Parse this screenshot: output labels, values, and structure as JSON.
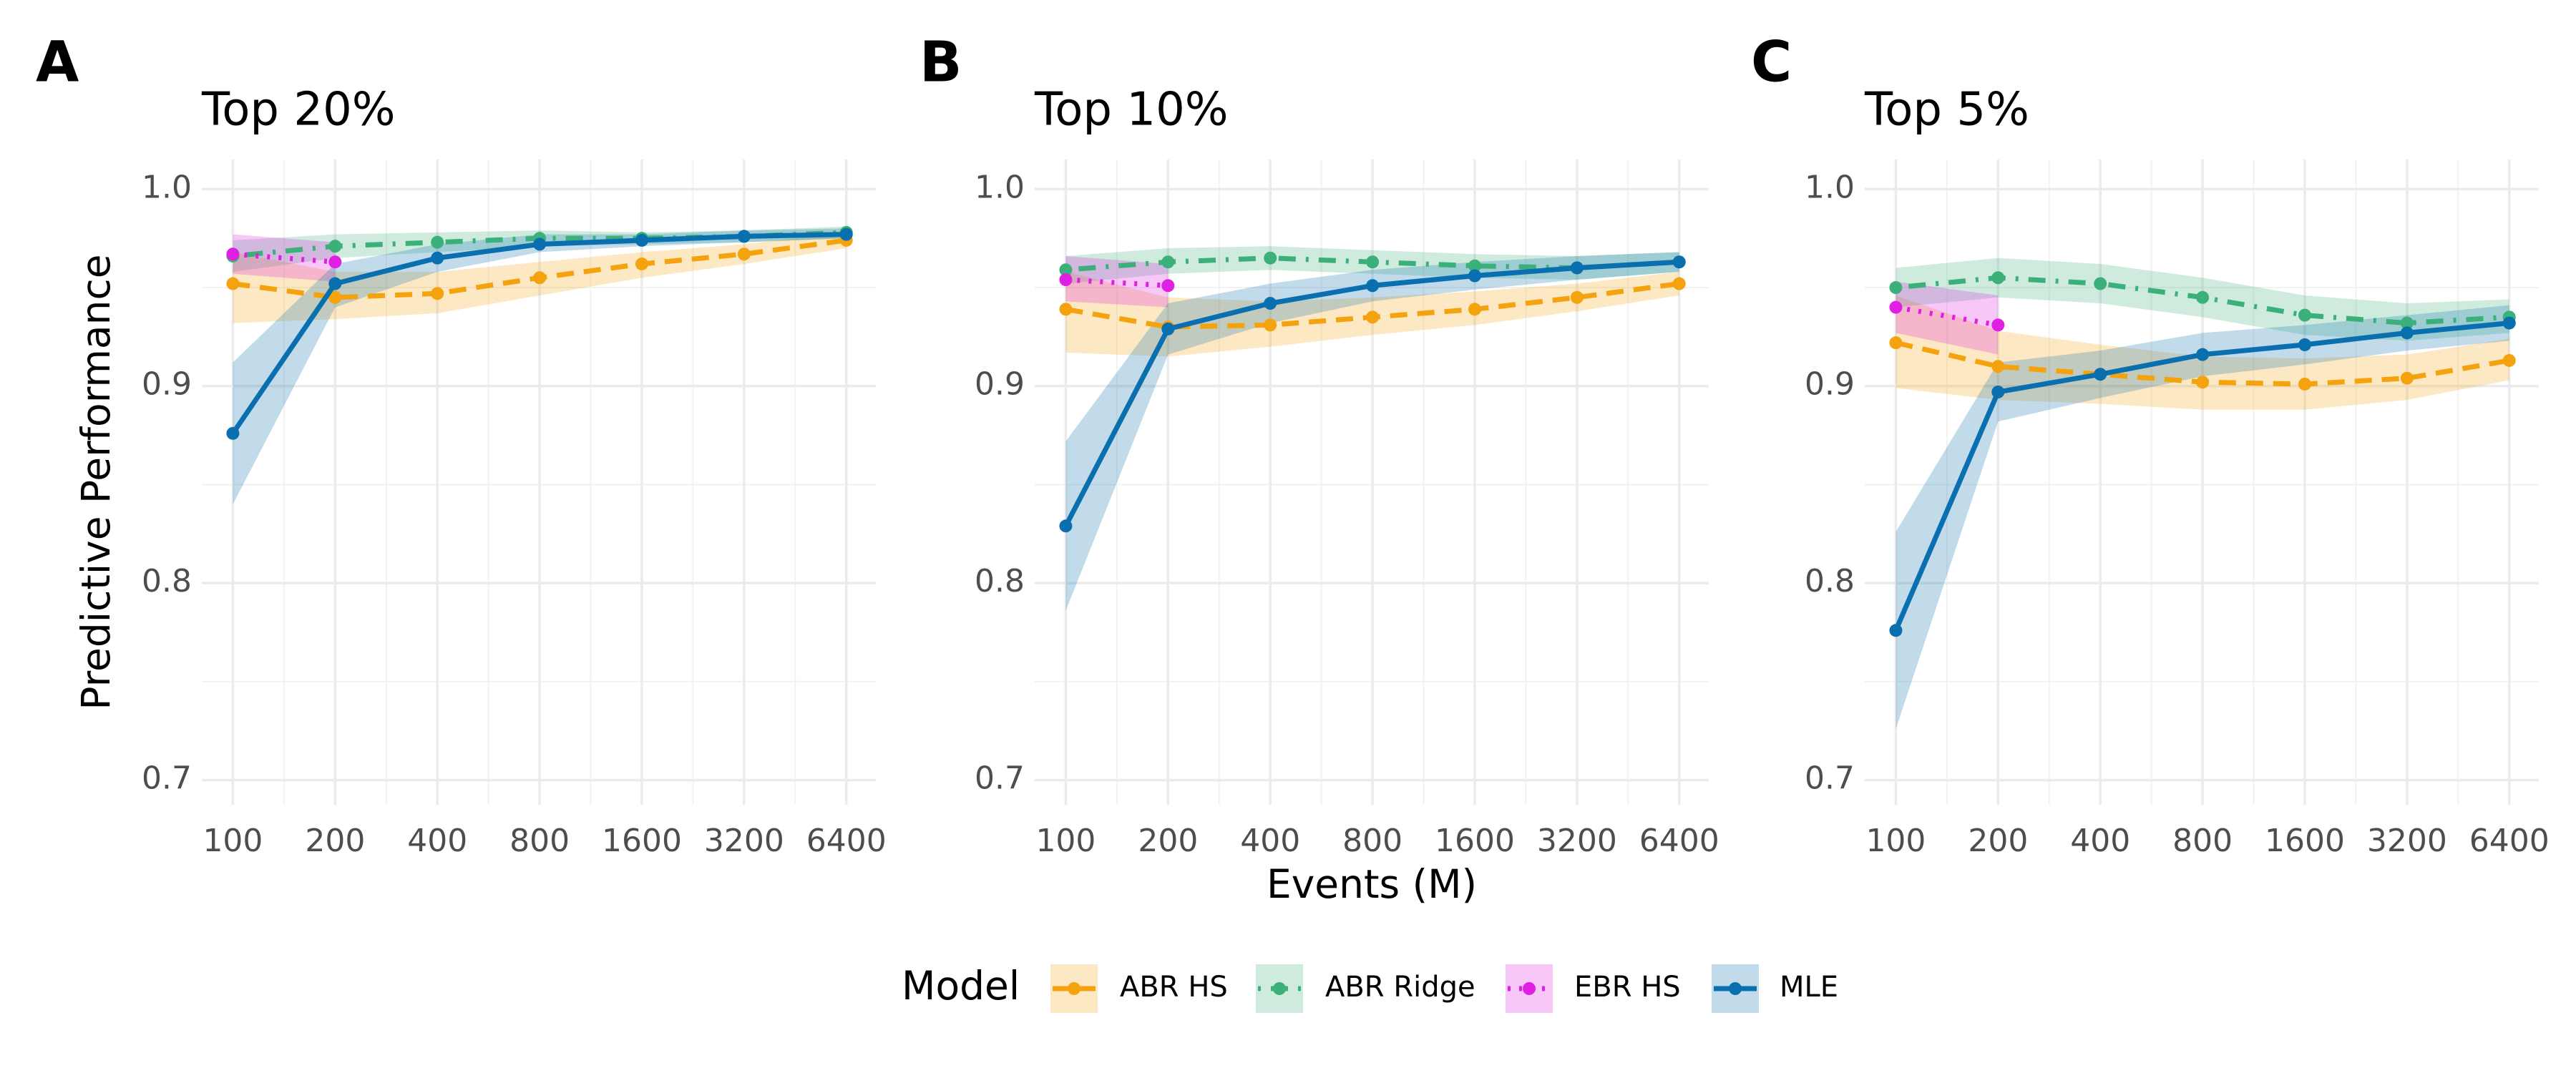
{
  "chart_data": [
    {
      "type": "line",
      "tag": "A",
      "title": "Top 20%",
      "y_label": "Predictive Performance",
      "x_scale": "log2",
      "x": [
        100,
        200,
        400,
        800,
        1600,
        3200,
        6400
      ],
      "xlim": [
        81,
        7818
      ],
      "xticks": [
        100,
        200,
        400,
        800,
        1600,
        3200,
        6400
      ],
      "ylim": [
        0.6875,
        1.015
      ],
      "yticks": [
        0.7,
        0.8,
        0.9,
        {
          "value": 1,
          "label": "1.0"
        }
      ],
      "grid": true,
      "series": [
        {
          "name": "ABR HS",
          "color": "#f5a20f",
          "linetype": "dashed",
          "values": [
            0.952,
            0.945,
            0.947,
            0.955,
            0.962,
            0.967,
            0.974
          ],
          "lower": [
            0.932,
            0.934,
            0.937,
            0.946,
            0.955,
            0.962,
            0.97
          ],
          "upper": [
            0.968,
            0.958,
            0.958,
            0.963,
            0.968,
            0.972,
            0.978
          ]
        },
        {
          "name": "ABR Ridge",
          "color": "#3cb07a",
          "linetype": "dotdash",
          "values": [
            0.966,
            0.971,
            0.973,
            0.975,
            0.975,
            0.976,
            0.978
          ],
          "lower": [
            0.958,
            0.965,
            0.968,
            0.971,
            0.972,
            0.973,
            0.975
          ],
          "upper": [
            0.974,
            0.977,
            0.978,
            0.979,
            0.978,
            0.979,
            0.981
          ]
        },
        {
          "name": "EBR HS",
          "color": "#e01fe3",
          "linetype": "dotted",
          "values": [
            0.967,
            0.963,
            null,
            null,
            null,
            null,
            null
          ],
          "lower": [
            0.957,
            0.953,
            null,
            null,
            null,
            null,
            null
          ],
          "upper": [
            0.977,
            0.973,
            null,
            null,
            null,
            null,
            null
          ]
        },
        {
          "name": "MLE",
          "color": "#0a6fae",
          "linetype": "solid",
          "values": [
            0.876,
            0.952,
            0.965,
            0.972,
            0.974,
            0.976,
            0.977
          ],
          "lower": [
            0.84,
            0.94,
            0.958,
            0.968,
            0.971,
            0.973,
            0.975
          ],
          "upper": [
            0.912,
            0.962,
            0.972,
            0.977,
            0.977,
            0.979,
            0.98
          ]
        }
      ]
    },
    {
      "type": "line",
      "tag": "B",
      "title": "Top 10%",
      "x_label": "Events (M)",
      "x_scale": "log2",
      "x": [
        100,
        200,
        400,
        800,
        1600,
        3200,
        6400
      ],
      "xlim": [
        81,
        7818
      ],
      "xticks": [
        100,
        200,
        400,
        800,
        1600,
        3200,
        6400
      ],
      "ylim": [
        0.6875,
        1.015
      ],
      "yticks": [
        0.7,
        0.8,
        0.9,
        {
          "value": 1,
          "label": "1.0"
        }
      ],
      "grid": true,
      "series": [
        {
          "name": "ABR HS",
          "color": "#f5a20f",
          "linetype": "dashed",
          "values": [
            0.939,
            0.93,
            0.931,
            0.935,
            0.939,
            0.945,
            0.952
          ],
          "lower": [
            0.917,
            0.915,
            0.92,
            0.926,
            0.931,
            0.938,
            0.946
          ],
          "upper": [
            0.958,
            0.945,
            0.943,
            0.945,
            0.948,
            0.952,
            0.958
          ]
        },
        {
          "name": "ABR Ridge",
          "color": "#3cb07a",
          "linetype": "dotdash",
          "values": [
            0.959,
            0.963,
            0.965,
            0.963,
            0.961,
            0.96,
            0.963
          ],
          "lower": [
            0.952,
            0.957,
            0.959,
            0.957,
            0.955,
            0.954,
            0.958
          ],
          "upper": [
            0.966,
            0.97,
            0.971,
            0.969,
            0.967,
            0.966,
            0.968
          ]
        },
        {
          "name": "EBR HS",
          "color": "#e01fe3",
          "linetype": "dotted",
          "values": [
            0.954,
            0.951,
            null,
            null,
            null,
            null,
            null
          ],
          "lower": [
            0.943,
            0.94,
            null,
            null,
            null,
            null,
            null
          ],
          "upper": [
            0.966,
            0.962,
            null,
            null,
            null,
            null,
            null
          ]
        },
        {
          "name": "MLE",
          "color": "#0a6fae",
          "linetype": "solid",
          "values": [
            0.829,
            0.929,
            0.942,
            0.951,
            0.956,
            0.96,
            0.963
          ],
          "lower": [
            0.786,
            0.916,
            0.932,
            0.943,
            0.949,
            0.954,
            0.958
          ],
          "upper": [
            0.872,
            0.942,
            0.952,
            0.959,
            0.963,
            0.966,
            0.968
          ]
        }
      ]
    },
    {
      "type": "line",
      "tag": "C",
      "title": "Top 5%",
      "x_scale": "log2",
      "x": [
        100,
        200,
        400,
        800,
        1600,
        3200,
        6400
      ],
      "xlim": [
        81,
        7818
      ],
      "xticks": [
        100,
        200,
        400,
        800,
        1600,
        3200,
        6400
      ],
      "ylim": [
        0.6875,
        1.015
      ],
      "yticks": [
        0.7,
        0.8,
        0.9,
        {
          "value": 1,
          "label": "1.0"
        }
      ],
      "grid": true,
      "series": [
        {
          "name": "ABR HS",
          "color": "#f5a20f",
          "linetype": "dashed",
          "values": [
            0.922,
            0.91,
            0.906,
            0.902,
            0.901,
            0.904,
            0.913
          ],
          "lower": [
            0.899,
            0.893,
            0.891,
            0.888,
            0.888,
            0.893,
            0.903
          ],
          "upper": [
            0.946,
            0.928,
            0.921,
            0.915,
            0.914,
            0.916,
            0.924
          ]
        },
        {
          "name": "ABR Ridge",
          "color": "#3cb07a",
          "linetype": "dotdash",
          "values": [
            0.95,
            0.955,
            0.952,
            0.945,
            0.936,
            0.932,
            0.935
          ],
          "lower": [
            0.94,
            0.945,
            0.942,
            0.935,
            0.926,
            0.923,
            0.927
          ],
          "upper": [
            0.96,
            0.965,
            0.962,
            0.955,
            0.946,
            0.942,
            0.944
          ]
        },
        {
          "name": "EBR HS",
          "color": "#e01fe3",
          "linetype": "dotted",
          "values": [
            0.94,
            0.931,
            null,
            null,
            null,
            null,
            null
          ],
          "lower": [
            0.927,
            0.916,
            null,
            null,
            null,
            null,
            null
          ],
          "upper": [
            0.953,
            0.946,
            null,
            null,
            null,
            null,
            null
          ]
        },
        {
          "name": "MLE",
          "color": "#0a6fae",
          "linetype": "solid",
          "values": [
            0.776,
            0.897,
            0.906,
            0.916,
            0.921,
            0.927,
            0.932
          ],
          "lower": [
            0.726,
            0.882,
            0.894,
            0.905,
            0.911,
            0.918,
            0.923
          ],
          "upper": [
            0.826,
            0.912,
            0.918,
            0.927,
            0.931,
            0.936,
            0.941
          ]
        }
      ]
    }
  ],
  "legend": {
    "title": "Model",
    "position": "bottom"
  }
}
